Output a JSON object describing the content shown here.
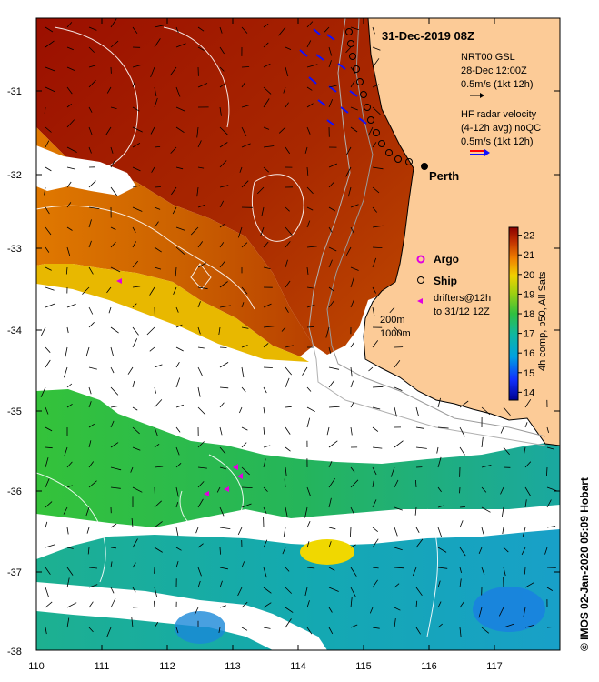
{
  "title": "31-Dec-2019 08Z",
  "credit": "© IMOS 02-Jan-2020 05:09 Hobart",
  "x_ticks": [
    "110",
    "111",
    "112",
    "113",
    "114",
    "115",
    "116",
    "117"
  ],
  "y_ticks": [
    "-31",
    "-32",
    "-33",
    "-34",
    "-35",
    "-36",
    "-37",
    "-38"
  ],
  "city": "Perth",
  "legend": {
    "gsl_title": "NRT00 GSL",
    "gsl_date": "28-Dec 12:00Z",
    "gsl_scale": "0.5m/s (1kt 12h)",
    "hf_title": "HF radar velocity",
    "hf_sub": "(4-12h avg) noQC",
    "hf_scale": "0.5m/s (1kt 12h)",
    "argo": "Argo",
    "ship": "Ship",
    "drifters_1": "drifters@12h",
    "drifters_2": "to 31/12 12Z",
    "iso_200": "200m",
    "iso_1000": "1000m"
  },
  "colorbar": {
    "title": "4h comp, p50, All Sats",
    "ticks": [
      "14",
      "15",
      "16",
      "17",
      "18",
      "19",
      "20",
      "21",
      "22"
    ],
    "min": 13.6,
    "max": 22.4
  },
  "colors": {
    "land": "#fccb97",
    "sst_warm": "#a31a00",
    "sst_mid": "#e07a00",
    "sst_cool": "#2db84a",
    "argo": "#e000e0",
    "hf_red": "#ff0000",
    "hf_blue": "#1010ff"
  }
}
